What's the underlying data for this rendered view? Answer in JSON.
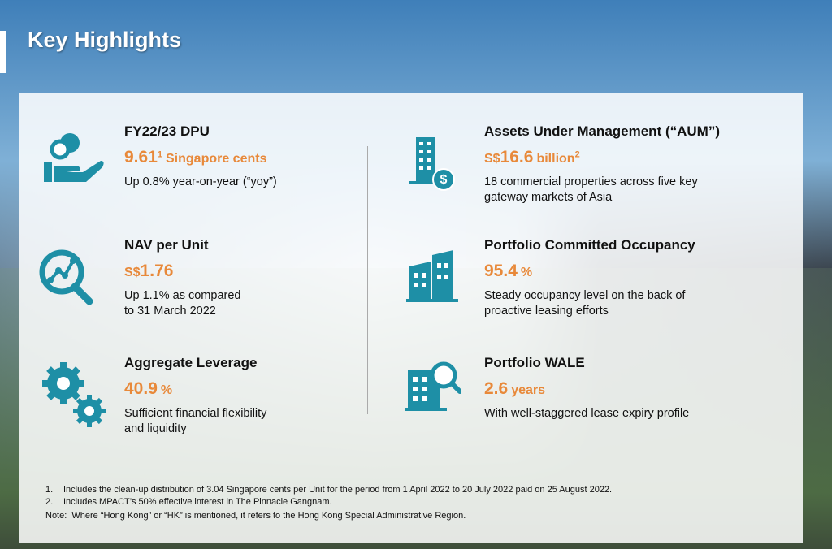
{
  "header": {
    "title": "Key Highlights"
  },
  "highlights": [
    {
      "heading": "FY22/23 DPU",
      "figure": [
        {
          "kind": "main",
          "text": "9.61"
        },
        {
          "kind": "sup",
          "text": "1"
        },
        {
          "kind": "unit",
          "text": "Singapore cents"
        }
      ],
      "description": [
        "Up 0.8% year-on-year (“yoy”)"
      ]
    },
    {
      "heading": "Assets Under Management (“AUM”)",
      "figure": [
        {
          "kind": "prefix",
          "text": "S$"
        },
        {
          "kind": "main",
          "text": "16.6"
        },
        {
          "kind": "unit",
          "text": "billion"
        },
        {
          "kind": "sup",
          "text": "2"
        }
      ],
      "description": [
        "18 commercial properties across five key",
        "gateway markets of Asia"
      ]
    },
    {
      "heading": "NAV per Unit",
      "figure": [
        {
          "kind": "prefix",
          "text": "S$"
        },
        {
          "kind": "main",
          "text": "1.76"
        }
      ],
      "description": [
        "Up 1.1% as compared",
        "to 31 March 2022"
      ]
    },
    {
      "heading": "Portfolio Committed Occupancy",
      "figure": [
        {
          "kind": "main",
          "text": "95.4"
        },
        {
          "kind": "unit",
          "text": "%"
        }
      ],
      "description": [
        "Steady occupancy level on the back of",
        "proactive leasing efforts"
      ]
    },
    {
      "heading": "Aggregate Leverage",
      "figure": [
        {
          "kind": "main",
          "text": "40.9"
        },
        {
          "kind": "unit",
          "text": "%"
        }
      ],
      "description": [
        "Sufficient financial flexibility",
        "and liquidity"
      ]
    },
    {
      "heading": "Portfolio WALE",
      "figure": [
        {
          "kind": "main",
          "text": "2.6"
        },
        {
          "kind": "unit",
          "text": "years"
        }
      ],
      "description": [
        "With well-staggered lease expiry profile"
      ]
    }
  ],
  "footnotes": [
    {
      "number": "1.",
      "text": "Includes the clean-up distribution of 3.04 Singapore cents per Unit for the period from 1 April 2022 to 20 July 2022 paid on 25 August 2022."
    },
    {
      "number": "2.",
      "text": "Includes MPACT’s 50% effective interest in The Pinnacle Gangnam."
    }
  ],
  "note": "Note:  Where “Hong Kong” or “HK” is mentioned, it refers to the Hong Kong Special Administrative Region."
}
